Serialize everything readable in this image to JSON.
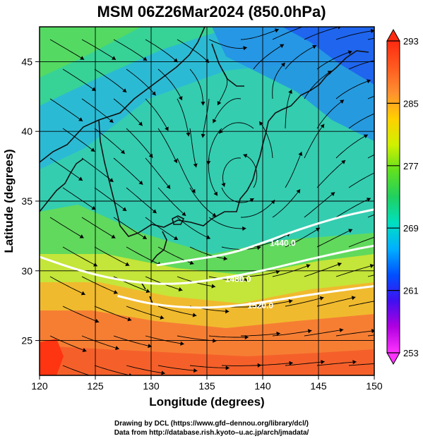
{
  "title": "MSM 06Z26Mar2024 (850.0hPa)",
  "axes": {
    "xlabel": "Longitude (degrees)",
    "ylabel": "Latitude  (degrees)",
    "xticks": [
      "120",
      "125",
      "130",
      "135",
      "140",
      "145",
      "150"
    ],
    "yticks": [
      "25",
      "30",
      "35",
      "40",
      "45"
    ],
    "xlim": [
      120,
      150
    ],
    "ylim": [
      22.5,
      47.5
    ]
  },
  "colorbar": {
    "labels": [
      "293",
      "285",
      "277",
      "269",
      "261",
      "253"
    ],
    "values": [
      293,
      285,
      277,
      269,
      261,
      253
    ],
    "range": [
      253,
      293
    ],
    "colors": [
      "#ff33ff",
      "#b000e0",
      "#4010f0",
      "#0050ff",
      "#00b0ff",
      "#00e0c0",
      "#20d060",
      "#60e020",
      "#d0f000",
      "#ffd000",
      "#ff9030",
      "#ff5a20",
      "#ff2a10"
    ]
  },
  "contours": [
    {
      "label": "1440.0",
      "value": 1440.0,
      "points": [
        [
          130.5,
          30.4
        ],
        [
          133,
          30.7
        ],
        [
          137,
          31.2
        ],
        [
          140,
          32.0
        ],
        [
          143,
          32.9
        ],
        [
          147,
          33.9
        ],
        [
          150,
          34.4
        ]
      ]
    },
    {
      "label": "1480.0",
      "value": 1480.0,
      "points": [
        [
          120,
          31.0
        ],
        [
          124,
          29.9
        ],
        [
          128,
          29.2
        ],
        [
          132,
          29.0
        ],
        [
          136,
          29.4
        ],
        [
          140,
          30.0
        ],
        [
          144,
          30.8
        ],
        [
          148,
          31.5
        ],
        [
          150,
          31.8
        ]
      ]
    },
    {
      "label": "1520.0",
      "value": 1520.0,
      "points": [
        [
          127,
          28.2
        ],
        [
          130,
          27.6
        ],
        [
          134,
          27.3
        ],
        [
          138,
          27.5
        ],
        [
          142,
          28.0
        ],
        [
          146,
          28.5
        ],
        [
          150,
          28.9
        ]
      ]
    }
  ],
  "credit": {
    "line1": "Drawing by DCL (https://www.gfd–dennou.org/library/dcl/)",
    "line2": "Data from http://database.rish.kyoto–u.ac.jp/arch/jmadata/"
  }
}
